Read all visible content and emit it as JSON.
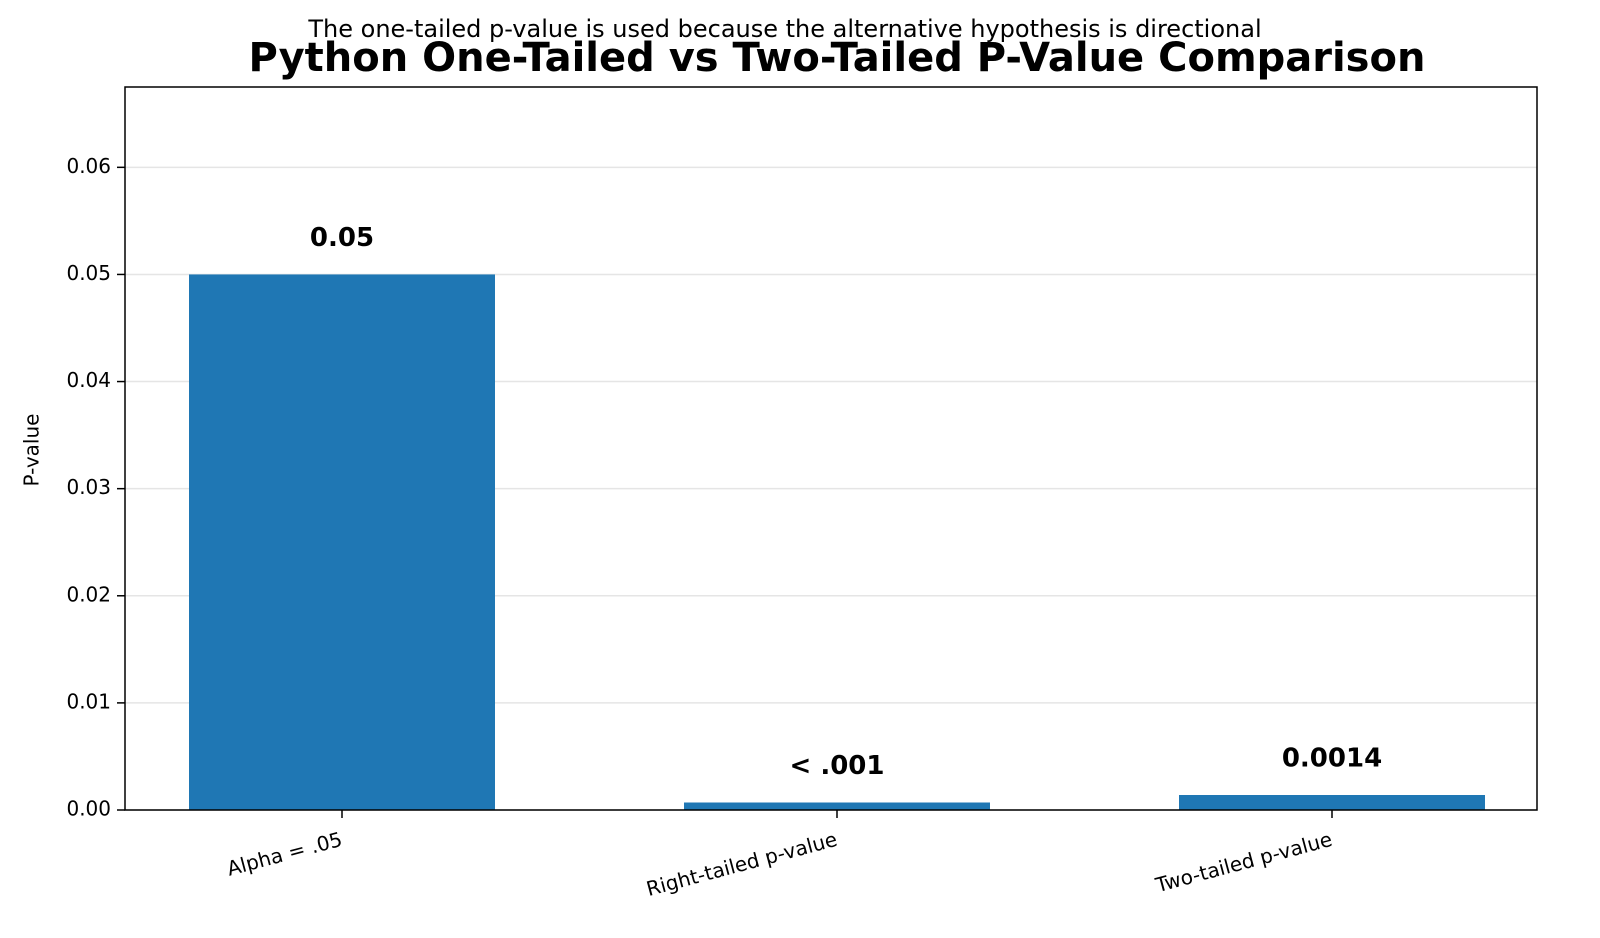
{
  "chart_data": {
    "type": "bar",
    "title": "Python One-Tailed vs Two-Tailed P-Value Comparison",
    "subtitle": "The one-tailed p-value is used because the alternative hypothesis is directional",
    "y_label": "P-value",
    "categories": [
      "Alpha = .05",
      "Right-tailed p-value",
      "Two-tailed p-value"
    ],
    "values": [
      0.05,
      0.0007,
      0.0014
    ],
    "value_labels": [
      "0.05",
      "< .001",
      "0.0014"
    ],
    "color": "#1f77b4",
    "ylim": [
      0,
      0.0675
    ],
    "yticks": [
      {
        "value": 0,
        "label": "0.00"
      },
      0.01,
      0.02,
      0.03,
      0.04,
      0.05,
      0.06
    ],
    "grid": true
  }
}
